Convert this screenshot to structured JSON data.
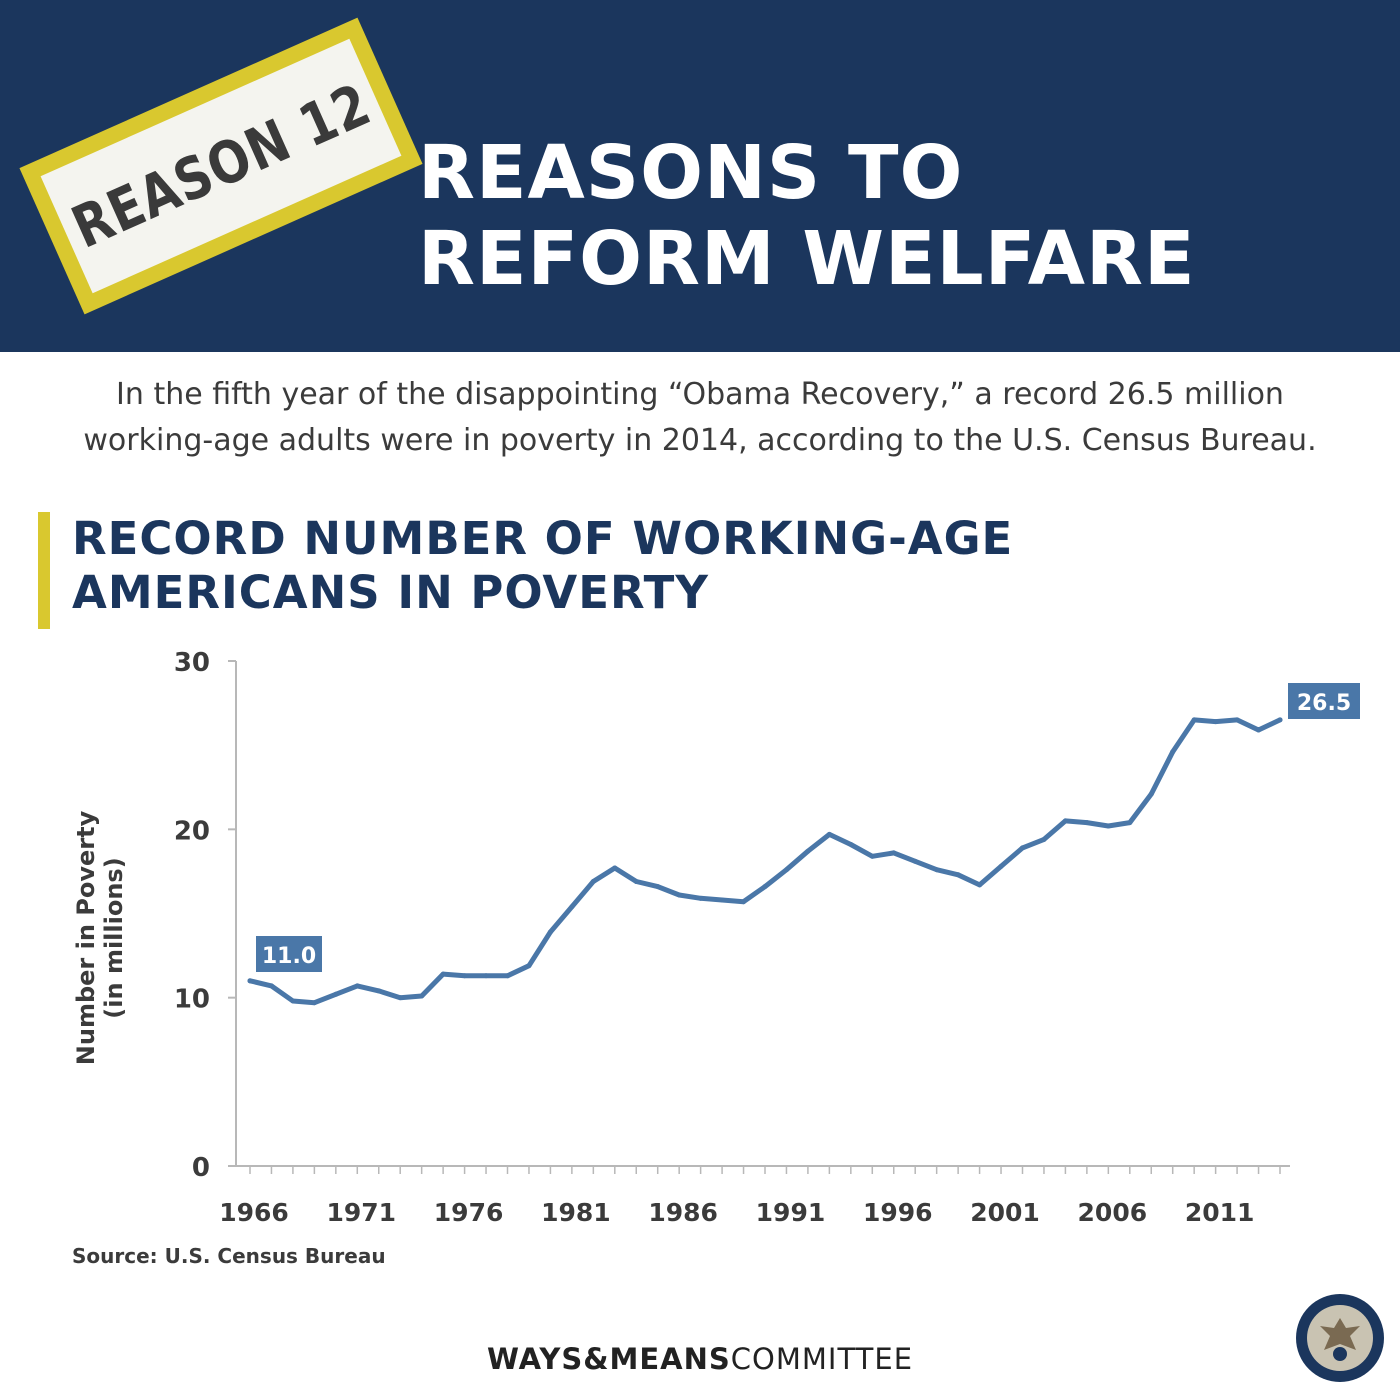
{
  "banner": {
    "stamp_text": "REASON 12",
    "title_line1": "REASONS TO",
    "title_line2": "REFORM WELFARE"
  },
  "intro": {
    "line1": "In the fifth year of the disappointing “Obama Recovery,” a record 26.5 million",
    "line2": "working-age adults were in poverty in 2014, according to the U.S. Census Bureau."
  },
  "heading": {
    "line1": "RECORD NUMBER OF WORKING-AGE",
    "line2": "AMERICANS IN POVERTY"
  },
  "source": "Source: U.S. Census Bureau",
  "footer": {
    "bold": "WAYS&MEANS",
    "regular": "COMMITTEE"
  },
  "colors": {
    "navy": "#1b365d",
    "yellow": "#d9c82f",
    "line": "#4a77a8",
    "text": "#3b3b3b"
  },
  "chart_data": {
    "type": "line",
    "title": "RECORD NUMBER OF WORKING-AGE AMERICANS IN POVERTY",
    "xlabel": "",
    "ylabel_line1": "Number in Poverty",
    "ylabel_line2": "(in millions)",
    "ylim": [
      0,
      30
    ],
    "xlim": [
      1966,
      2014
    ],
    "yticks": [
      0,
      10,
      20,
      30
    ],
    "xticks": [
      1966,
      1971,
      1976,
      1981,
      1986,
      1991,
      1996,
      2001,
      2006,
      2011
    ],
    "grid": false,
    "series": [
      {
        "x": [
          1966,
          1967,
          1968,
          1969,
          1970,
          1971,
          1972,
          1973,
          1974,
          1975,
          1976,
          1977,
          1978,
          1979,
          1980,
          1981,
          1982,
          1983,
          1984,
          1985,
          1986,
          1987,
          1988,
          1989,
          1990,
          1991,
          1992,
          1993,
          1994,
          1995,
          1996,
          1997,
          1998,
          1999,
          2000,
          2001,
          2002,
          2003,
          2004,
          2005,
          2006,
          2007,
          2008,
          2009,
          2010,
          2011,
          2012,
          2013,
          2014
        ],
        "values": [
          11.0,
          10.7,
          9.8,
          9.7,
          10.2,
          10.7,
          10.4,
          10.0,
          10.1,
          11.4,
          11.3,
          11.3,
          11.3,
          11.9,
          13.9,
          15.4,
          16.9,
          17.7,
          16.9,
          16.6,
          16.1,
          15.9,
          15.8,
          15.7,
          16.6,
          17.6,
          18.7,
          19.7,
          19.1,
          18.4,
          18.6,
          18.1,
          17.6,
          17.3,
          16.7,
          17.8,
          18.9,
          19.4,
          20.5,
          20.4,
          20.2,
          20.4,
          22.1,
          24.6,
          26.5,
          26.4,
          26.5,
          25.9,
          26.5
        ]
      }
    ],
    "annotations": [
      {
        "x": 1966,
        "value": 11.0,
        "text": "11.0"
      },
      {
        "x": 2014,
        "value": 26.5,
        "text": "26.5"
      }
    ]
  }
}
